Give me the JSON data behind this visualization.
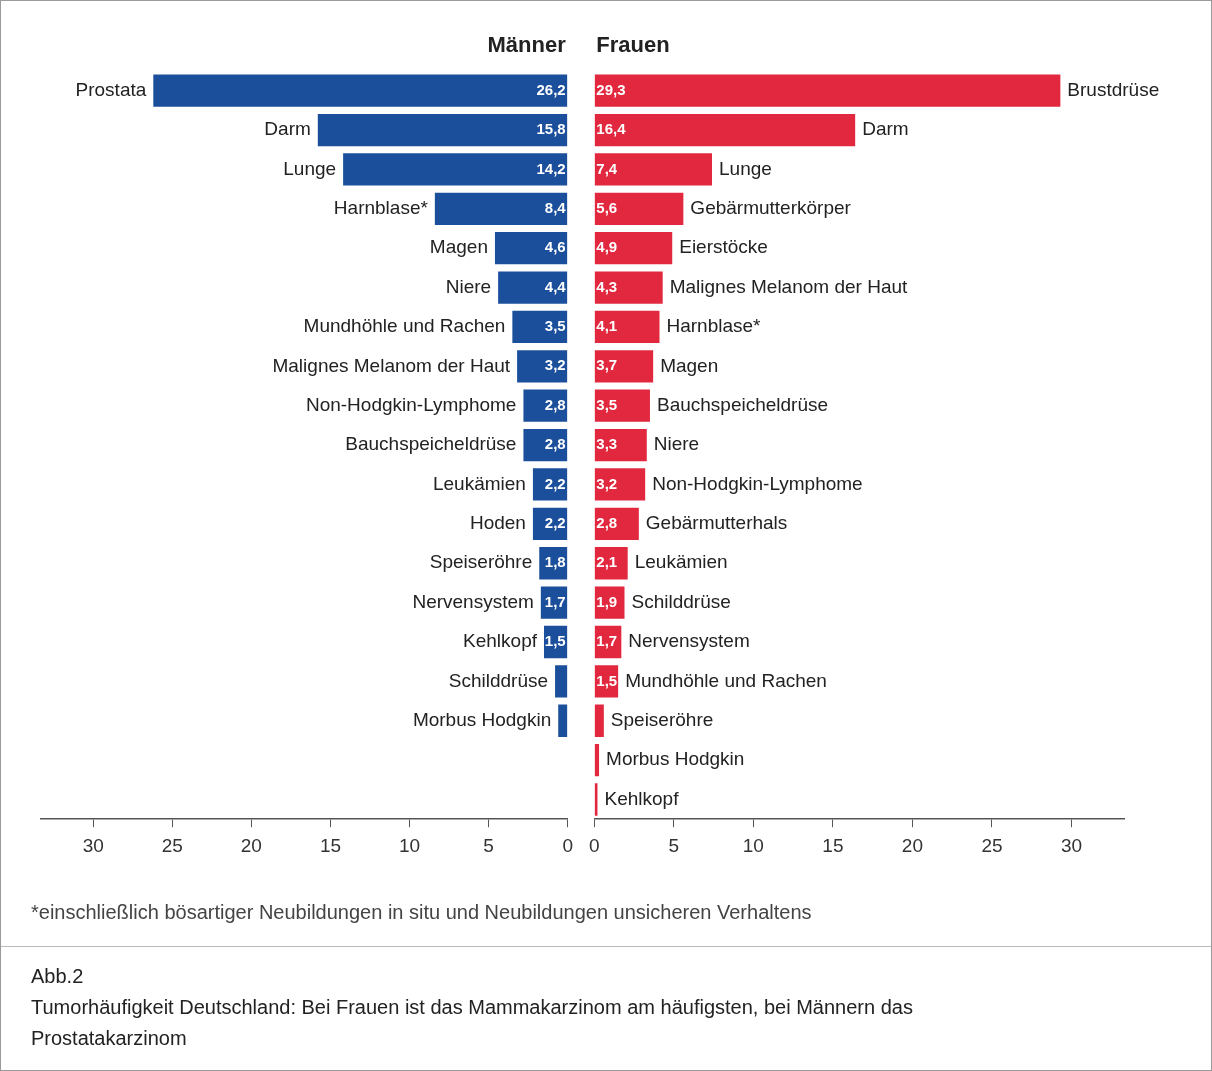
{
  "chart_data": [
    {
      "type": "bar",
      "orientation": "horizontal",
      "title": "Männer",
      "categories": [
        "Prostata",
        "Darm",
        "Lunge",
        "Harnblase*",
        "Magen",
        "Niere",
        "Mundhöhle und Rachen",
        "Malignes Melanom der Haut",
        "Non-Hodgkin-Lymphome",
        "Bauchspeicheldrüse",
        "Leukämien",
        "Hoden",
        "Speiseröhre",
        "Nervensystem",
        "Kehlkopf",
        "Schilddrüse",
        "Morbus Hodgkin"
      ],
      "values": [
        26.2,
        15.8,
        14.2,
        8.4,
        4.6,
        4.4,
        3.5,
        3.2,
        2.8,
        2.8,
        2.2,
        2.2,
        1.8,
        1.7,
        1.5,
        0.8,
        0.6
      ],
      "value_labels": [
        "26,2",
        "15,8",
        "14,2",
        "8,4",
        "4,6",
        "4,4",
        "3,5",
        "3,2",
        "2,8",
        "2,8",
        "2,2",
        "2,2",
        "1,8",
        "1,7",
        "1,5",
        null,
        null
      ],
      "color": "#1b4f9b",
      "xlim": [
        33.3,
        0
      ],
      "xticks": [
        30,
        25,
        20,
        15,
        10,
        5,
        0
      ],
      "grid": false,
      "legend": false,
      "annotations": [
        "*einschließlich bösartiger Neubildungen in situ und Neubildungen unsicheren Verhaltens",
        "Abb.2",
        "Tumorhäufigkeit Deutschland: Bei Frauen ist das Mammakarzinom am häufigsten, bei Männern das Prostatakarzinom"
      ]
    },
    {
      "type": "bar",
      "orientation": "horizontal",
      "title": "Frauen",
      "categories": [
        "Brustdrüse",
        "Darm",
        "Lunge",
        "Gebärmutterkörper",
        "Eierstöcke",
        "Malignes Melanom der Haut",
        "Harnblase*",
        "Magen",
        "Bauchspeicheldrüse",
        "Niere",
        "Non-Hodgkin-Lymphome",
        "Gebärmutterhals",
        "Leukämien",
        "Schilddrüse",
        "Nervensystem",
        "Mundhöhle und Rachen",
        "Speiseröhre",
        "Morbus Hodgkin",
        "Kehlkopf"
      ],
      "values": [
        29.3,
        16.4,
        7.4,
        5.6,
        4.9,
        4.3,
        4.1,
        3.7,
        3.5,
        3.3,
        3.2,
        2.8,
        2.1,
        1.9,
        1.7,
        1.5,
        0.6,
        0.3,
        0.2
      ],
      "value_labels": [
        "29,3",
        "16,4",
        "7,4",
        "5,6",
        "4,9",
        "4,3",
        "4,1",
        "3,7",
        "3,5",
        "3,3",
        "3,2",
        "2,8",
        "2,1",
        "1,9",
        "1,7",
        "1,5",
        null,
        null,
        null
      ],
      "color": "#e1283e",
      "xlim": [
        0,
        33.3
      ],
      "xticks": [
        0,
        5,
        10,
        15,
        20,
        25,
        30
      ],
      "grid": false,
      "legend": false
    }
  ]
}
